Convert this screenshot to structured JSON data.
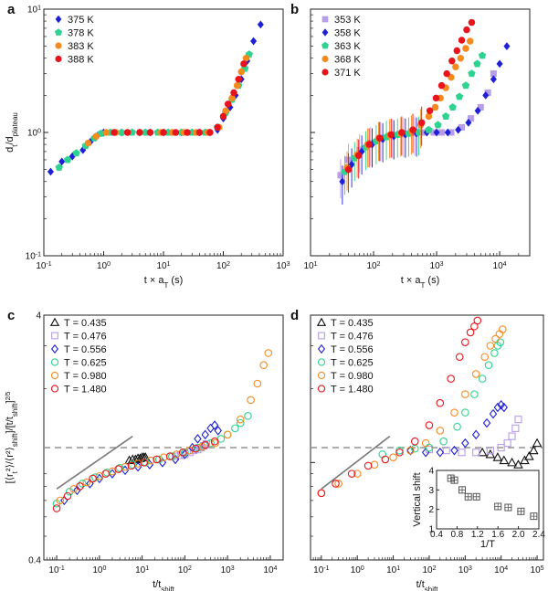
{
  "chart_data": [
    {
      "panel": "a",
      "type": "scatter",
      "xlabel": "t × a_T (s)",
      "ylabel": "d_t/d_plateau",
      "xscale": "log",
      "yscale": "log",
      "xlim": [
        0.1,
        1000
      ],
      "ylim": [
        0.1,
        10
      ],
      "xtick_labels": [
        "10^-1",
        "10^0",
        "10^1",
        "10^2",
        "10^3"
      ],
      "ytick_labels": [
        "10^-1",
        "10^0",
        "10^1"
      ],
      "legend": "top-left",
      "series": [
        {
          "name": "375 K",
          "marker": "diamond",
          "color": "#1f1fd6",
          "x": [
            0.13,
            0.2,
            0.3,
            0.45,
            0.6,
            0.8,
            1.0,
            2,
            4,
            6,
            10,
            20,
            40,
            60,
            80,
            100,
            130,
            160,
            200,
            250,
            320,
            420
          ],
          "y": [
            0.48,
            0.58,
            0.64,
            0.72,
            0.84,
            0.95,
            1.0,
            1.0,
            1.0,
            1.0,
            1.0,
            1.0,
            1.0,
            1.0,
            1.05,
            1.3,
            1.6,
            2.0,
            2.7,
            3.8,
            5.5,
            7.5
          ]
        },
        {
          "name": "378 K",
          "marker": "pentagon",
          "color": "#2ed38f",
          "x": [
            0.18,
            0.25,
            0.35,
            0.5,
            0.7,
            0.9,
            1.3,
            2,
            3,
            5,
            8,
            12,
            20,
            30,
            50,
            80,
            110,
            140,
            180,
            230,
            270
          ],
          "y": [
            0.52,
            0.6,
            0.68,
            0.78,
            0.9,
            0.98,
            1.0,
            1.0,
            1.0,
            1.0,
            1.0,
            1.0,
            1.0,
            1.0,
            1.0,
            1.1,
            1.45,
            1.85,
            2.4,
            3.3,
            4.3
          ]
        },
        {
          "name": "383 K",
          "marker": "circle",
          "color": "#f58a1e",
          "x": [
            0.55,
            0.75,
            1.1,
            1.6,
            2.5,
            4,
            6,
            9,
            14,
            22,
            35,
            55,
            85,
            110,
            140,
            170,
            200,
            240
          ],
          "y": [
            0.82,
            0.93,
            1.0,
            1.0,
            1.0,
            1.0,
            1.0,
            1.0,
            1.0,
            1.0,
            1.0,
            1.0,
            1.1,
            1.5,
            1.9,
            2.4,
            3.1,
            4.0
          ]
        },
        {
          "name": "388 K",
          "marker": "circle",
          "color": "#e8141c",
          "x": [
            1.5,
            2.5,
            4,
            6,
            10,
            16,
            25,
            40,
            60,
            80,
            100,
            120,
            150,
            180,
            220
          ],
          "y": [
            1.0,
            1.0,
            1.0,
            1.0,
            1.0,
            1.0,
            1.0,
            1.0,
            1.0,
            1.1,
            1.35,
            1.7,
            2.1,
            2.7,
            3.6
          ]
        }
      ]
    },
    {
      "panel": "b",
      "type": "scatter",
      "xlabel": "t × a_T (s)",
      "ylabel": "",
      "xscale": "log",
      "yscale": "log",
      "xlim": [
        10,
        30000
      ],
      "ylim": [
        0.1,
        10
      ],
      "xtick_labels": [
        "10^1",
        "10^2",
        "10^3",
        "10^4"
      ],
      "legend": "top-left",
      "series": [
        {
          "name": "353 K",
          "marker": "square",
          "color": "#b79ee8",
          "x": [
            30,
            40,
            60,
            90,
            130,
            200,
            300,
            450,
            650,
            900,
            1200,
            1700,
            2500,
            3500,
            5000,
            6500,
            8000
          ],
          "y": [
            0.45,
            0.6,
            0.72,
            0.82,
            0.9,
            0.95,
            0.97,
            1.0,
            1.0,
            1.0,
            1.0,
            1.0,
            1.1,
            1.3,
            1.6,
            2.1,
            3.0
          ]
        },
        {
          "name": "358 K",
          "marker": "diamond",
          "color": "#1f1fd6",
          "x": [
            32,
            45,
            65,
            95,
            140,
            210,
            320,
            480,
            700,
            1000,
            1500,
            2200,
            3200,
            4500,
            6000,
            8000,
            10000,
            13000
          ],
          "y": [
            0.4,
            0.55,
            0.7,
            0.8,
            0.88,
            0.93,
            0.96,
            0.98,
            1.0,
            1.0,
            1.0,
            1.05,
            1.2,
            1.5,
            2.0,
            2.7,
            3.6,
            5.0
          ]
        },
        {
          "name": "363 K",
          "marker": "pentagon",
          "color": "#2ed38f",
          "x": [
            35,
            50,
            75,
            110,
            160,
            240,
            360,
            520,
            750,
            1050,
            1400,
            1800,
            2300,
            2900,
            3600,
            4400,
            5300
          ],
          "y": [
            0.48,
            0.62,
            0.76,
            0.85,
            0.92,
            0.96,
            0.98,
            1.0,
            1.05,
            1.15,
            1.35,
            1.6,
            1.95,
            2.4,
            3.0,
            3.6,
            4.2
          ]
        },
        {
          "name": "368 K",
          "marker": "circle",
          "color": "#f58a1e",
          "x": [
            38,
            55,
            80,
            120,
            180,
            270,
            400,
            560,
            750,
            950,
            1150,
            1400,
            1700,
            2000,
            2400,
            2900,
            3400
          ],
          "y": [
            0.52,
            0.66,
            0.8,
            0.9,
            0.95,
            0.98,
            1.02,
            1.15,
            1.35,
            1.6,
            1.9,
            2.3,
            2.8,
            3.4,
            4.0,
            4.8,
            5.5
          ]
        },
        {
          "name": "371 K",
          "marker": "circle",
          "color": "#e8141c",
          "x": [
            40,
            58,
            85,
            125,
            190,
            280,
            420,
            580,
            780,
            980,
            1200,
            1450,
            1750,
            2100,
            2500,
            3000,
            3600
          ],
          "y": [
            0.5,
            0.65,
            0.8,
            0.9,
            0.96,
            1.0,
            1.05,
            1.2,
            1.5,
            1.9,
            2.4,
            3.0,
            3.8,
            4.6,
            5.6,
            6.8,
            7.8
          ]
        }
      ]
    },
    {
      "panel": "c",
      "type": "scatter",
      "xlabel": "t/t_shift",
      "ylabel": "[⟨r_t²⟩/⟨r²⟩_shift]/[t/t_shift]^(2/5)",
      "xscale": "log",
      "yscale": "log",
      "xlim": [
        0.05,
        20000
      ],
      "ylim": [
        0.4,
        4
      ],
      "xtick_labels": [
        "10^-1",
        "10^0",
        "10^1",
        "10^2",
        "10^3",
        "10^4"
      ],
      "ytick_labels": [
        "0.4",
        "4"
      ],
      "reference_hline": 1.15,
      "legend": "top-left",
      "series": [
        {
          "name": "T = 0.435",
          "marker": "triangle",
          "color": "#111111",
          "x": [
            5,
            6,
            7,
            8,
            9,
            10,
            11,
            12
          ],
          "y": [
            1.02,
            1.03,
            1.03,
            1.04,
            1.04,
            1.05,
            1.05,
            1.05
          ]
        },
        {
          "name": "T = 0.476",
          "marker": "square",
          "color": "#b79ee8",
          "x": [
            60,
            80,
            100,
            130,
            160,
            200,
            240,
            280,
            320
          ],
          "y": [
            1.06,
            1.07,
            1.08,
            1.1,
            1.12,
            1.13,
            1.15,
            1.17,
            1.19
          ]
        },
        {
          "name": "T = 0.556",
          "marker": "diamond",
          "color": "#1f1fd6",
          "x": [
            0.15,
            0.3,
            0.6,
            1,
            2,
            4,
            8,
            15,
            30,
            60,
            100,
            150,
            200,
            300,
            400,
            500,
            600
          ],
          "y": [
            0.7,
            0.77,
            0.82,
            0.86,
            0.9,
            0.93,
            0.96,
            0.98,
            1.0,
            1.03,
            1.08,
            1.15,
            1.25,
            1.3,
            1.38,
            1.42,
            1.35
          ]
        },
        {
          "name": "T = 0.625",
          "marker": "circle",
          "color": "#2ed38f",
          "x": [
            0.1,
            0.2,
            0.4,
            0.8,
            1.5,
            3,
            6,
            12,
            25,
            50,
            100,
            200,
            400,
            700,
            1000,
            1500,
            2000,
            3000
          ],
          "y": [
            0.68,
            0.76,
            0.82,
            0.87,
            0.91,
            0.95,
            0.98,
            1.0,
            1.03,
            1.06,
            1.1,
            1.15,
            1.2,
            1.25,
            1.3,
            1.38,
            1.45,
            1.55
          ]
        },
        {
          "name": "T = 0.980",
          "marker": "circle",
          "color": "#f58a1e",
          "x": [
            0.12,
            0.25,
            0.5,
            1,
            2,
            4,
            8,
            16,
            32,
            64,
            128,
            256,
            512,
            1000,
            2000,
            3500,
            5000,
            7000,
            9000
          ],
          "y": [
            0.7,
            0.78,
            0.83,
            0.88,
            0.92,
            0.96,
            0.99,
            1.02,
            1.05,
            1.08,
            1.12,
            1.16,
            1.2,
            1.3,
            1.5,
            1.8,
            2.1,
            2.5,
            2.8
          ]
        },
        {
          "name": "T = 1.480",
          "marker": "circle",
          "color": "#e8141c",
          "x": [
            0.1,
            0.18,
            0.35,
            0.7,
            1.4,
            2.8,
            5.6,
            11,
            22,
            45,
            90,
            180,
            300,
            500
          ],
          "y": [
            0.65,
            0.73,
            0.8,
            0.86,
            0.9,
            0.94,
            0.97,
            1.0,
            1.03,
            1.06,
            1.1,
            1.14,
            1.18,
            1.22
          ]
        }
      ]
    },
    {
      "panel": "d",
      "type": "scatter",
      "xlabel": "t/t_shift",
      "ylabel": "",
      "xscale": "log",
      "yscale": "log",
      "xlim": [
        0.05,
        150000
      ],
      "ylim": [
        0.4,
        4
      ],
      "xtick_labels": [
        "10^-1",
        "10^0",
        "10^1",
        "10^2",
        "10^3",
        "10^4",
        "10^5"
      ],
      "reference_hline": 1.15,
      "legend": "top-left",
      "series": [
        {
          "name": "T = 0.435",
          "marker": "triangle",
          "color": "#111111",
          "x": [
            3000,
            5000,
            8000,
            12000,
            20000,
            30000,
            45000,
            60000,
            80000,
            100000
          ],
          "y": [
            1.1,
            1.08,
            1.05,
            1.02,
            1.0,
            0.98,
            1.02,
            1.06,
            1.12,
            1.2
          ]
        },
        {
          "name": "T = 0.476",
          "marker": "square",
          "color": "#b79ee8",
          "x": [
            100,
            300,
            800,
            2000,
            5000,
            10000,
            15000,
            20000,
            25000,
            30000
          ],
          "y": [
            1.13,
            1.12,
            1.1,
            1.1,
            1.12,
            1.15,
            1.2,
            1.28,
            1.38,
            1.5
          ]
        },
        {
          "name": "T = 0.556",
          "marker": "diamond",
          "color": "#1f1fd6",
          "x": [
            30,
            80,
            200,
            500,
            1000,
            2000,
            4000,
            6000,
            8000,
            10000,
            12000
          ],
          "y": [
            1.12,
            1.1,
            1.1,
            1.12,
            1.2,
            1.3,
            1.45,
            1.58,
            1.68,
            1.72,
            1.68
          ]
        },
        {
          "name": "T = 0.625",
          "marker": "circle",
          "color": "#2ed38f",
          "x": [
            5,
            15,
            40,
            100,
            250,
            600,
            1000,
            1800,
            3000,
            4500,
            6500,
            8000,
            9500
          ],
          "y": [
            1.08,
            1.12,
            1.14,
            1.15,
            1.22,
            1.4,
            1.6,
            1.9,
            2.2,
            2.5,
            2.8,
            3.0,
            3.1
          ]
        },
        {
          "name": "T = 0.980",
          "marker": "circle",
          "color": "#f58a1e",
          "x": [
            0.1,
            0.3,
            1,
            3,
            10,
            30,
            80,
            200,
            500,
            1000,
            2000,
            3500,
            5000,
            7000,
            9000,
            11000
          ],
          "y": [
            0.75,
            0.82,
            0.9,
            0.98,
            1.05,
            1.12,
            1.2,
            1.35,
            1.6,
            1.9,
            2.3,
            2.7,
            3.0,
            3.2,
            3.35,
            3.5
          ]
        },
        {
          "name": "T = 1.480",
          "marker": "circle",
          "color": "#e8141c",
          "x": [
            0.1,
            0.25,
            0.7,
            2,
            6,
            15,
            40,
            100,
            200,
            400,
            700,
            1000,
            1400,
            1800,
            2200
          ],
          "y": [
            0.75,
            0.82,
            0.9,
            0.97,
            1.03,
            1.1,
            1.22,
            1.42,
            1.75,
            2.2,
            2.7,
            3.1,
            3.4,
            3.6,
            3.8
          ]
        }
      ]
    },
    {
      "panel": "d-inset",
      "type": "scatter",
      "xlabel": "1/T",
      "ylabel": "Vertical shift",
      "xlim": [
        0.4,
        2.4
      ],
      "ylim": [
        1,
        4
      ],
      "xtick_labels": [
        "0.4",
        "0.8",
        "1.2",
        "1.6",
        "2.0",
        "2.4"
      ],
      "ytick_labels": [
        "1",
        "2",
        "3",
        "4"
      ],
      "series": [
        {
          "marker": "crossed-square",
          "color": "#555555",
          "x": [
            0.68,
            0.75,
            0.9,
            1.02,
            1.18,
            1.6,
            1.8,
            2.05,
            2.3
          ],
          "y": [
            3.6,
            3.5,
            3.0,
            2.65,
            2.65,
            2.15,
            2.1,
            1.9,
            1.65
          ]
        }
      ]
    }
  ]
}
